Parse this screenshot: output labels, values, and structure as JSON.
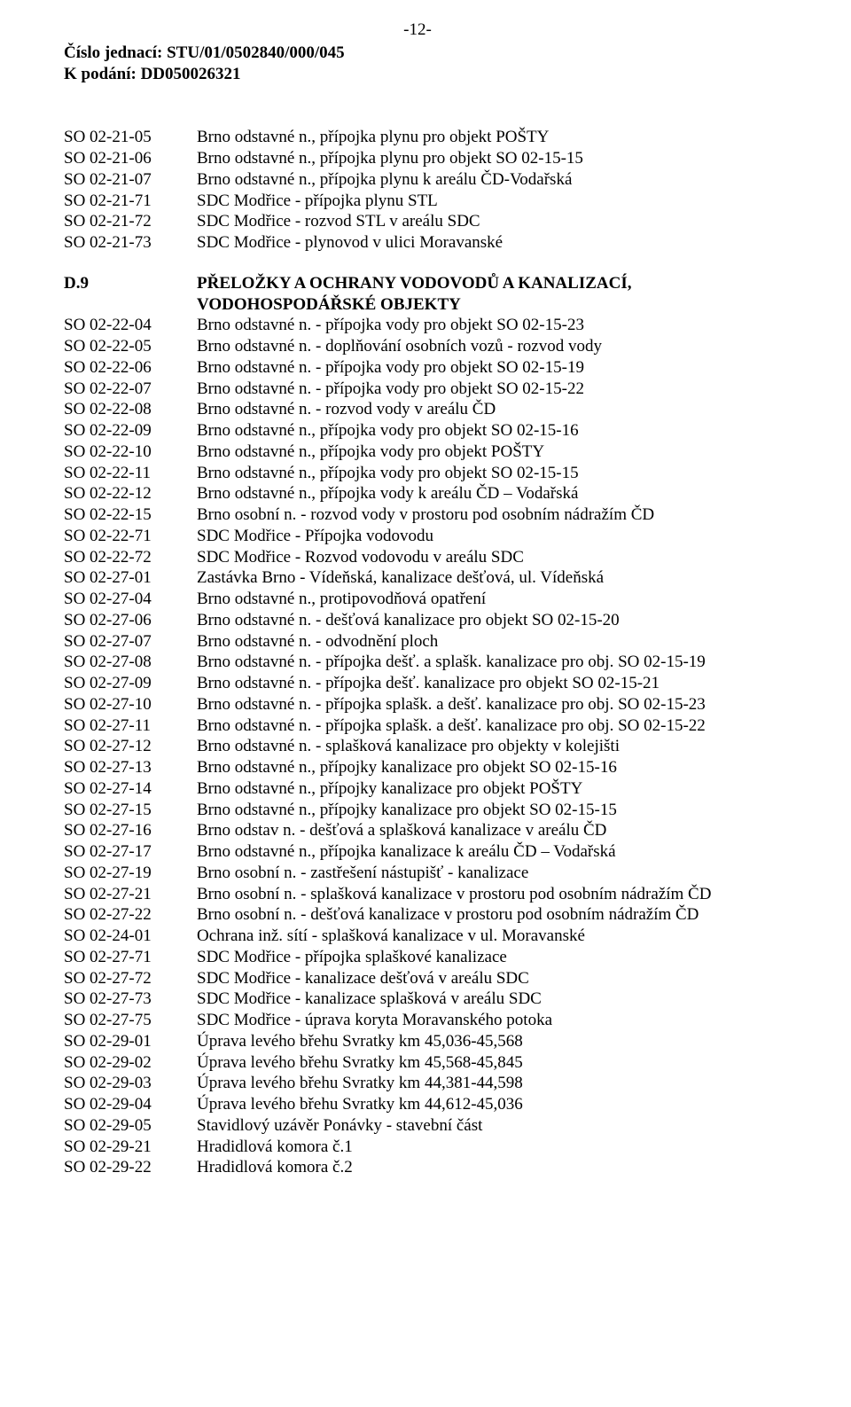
{
  "pageNumber": "-12-",
  "header": {
    "line1": "Číslo jednací: STU/01/0502840/000/045",
    "line2": "K podání: DD050026321"
  },
  "block1": [
    {
      "code": "SO 02-21-05",
      "desc": "Brno odstavné n., přípojka plynu pro objekt POŠTY"
    },
    {
      "code": "SO 02-21-06",
      "desc": "Brno odstavné n., přípojka plynu pro objekt SO 02-15-15"
    },
    {
      "code": "SO 02-21-07",
      "desc": "Brno odstavné n., přípojka plynu k areálu ČD-Vodařská"
    },
    {
      "code": "SO 02-21-71",
      "desc": "SDC Modřice - přípojka plynu STL"
    },
    {
      "code": "SO 02-21-72",
      "desc": "SDC Modřice - rozvod STL v areálu SDC"
    },
    {
      "code": "SO 02-21-73",
      "desc": "SDC Modřice - plynovod v ulici Moravanské"
    }
  ],
  "section": {
    "code": "D.9",
    "title1": "PŘELOŽKY A OCHRANY VODOVODŮ A KANALIZACÍ,",
    "title2": "VODOHOSPODÁŘSKÉ OBJEKTY"
  },
  "block2": [
    {
      "code": "SO 02-22-04",
      "desc": "Brno odstavné n. - přípojka vody pro objekt SO 02-15-23"
    },
    {
      "code": "SO 02-22-05",
      "desc": "Brno odstavné n. - doplňování osobních vozů - rozvod vody"
    },
    {
      "code": "SO 02-22-06",
      "desc": "Brno odstavné n. - přípojka vody pro objekt SO 02-15-19"
    },
    {
      "code": "SO 02-22-07",
      "desc": "Brno odstavné n. - přípojka vody pro objekt SO 02-15-22"
    },
    {
      "code": "SO 02-22-08",
      "desc": "Brno odstavné n. - rozvod vody v areálu ČD"
    },
    {
      "code": "SO 02-22-09",
      "desc": "Brno odstavné n., přípojka vody pro objekt SO 02-15-16"
    },
    {
      "code": "SO 02-22-10",
      "desc": "Brno odstavné n., přípojka vody pro objekt POŠTY"
    },
    {
      "code": "SO 02-22-11",
      "desc": "Brno odstavné n., přípojka vody pro objekt SO 02-15-15"
    },
    {
      "code": "SO 02-22-12",
      "desc": "Brno odstavné n., přípojka vody k areálu ČD – Vodařská"
    },
    {
      "code": "SO 02-22-15",
      "desc": "Brno osobní n. - rozvod vody v prostoru pod osobním nádražím ČD"
    },
    {
      "code": "SO 02-22-71",
      "desc": "SDC Modřice - Přípojka vodovodu"
    },
    {
      "code": "SO 02-22-72",
      "desc": "SDC Modřice - Rozvod vodovodu v areálu SDC"
    },
    {
      "code": "SO 02-27-01",
      "desc": "Zastávka Brno - Vídeňská, kanalizace dešťová, ul. Vídeňská"
    },
    {
      "code": "SO 02-27-04",
      "desc": "Brno odstavné n., protipovodňová opatření"
    },
    {
      "code": "SO 02-27-06",
      "desc": "Brno odstavné n. - dešťová kanalizace pro objekt SO 02-15-20"
    },
    {
      "code": "SO 02-27-07",
      "desc": "Brno odstavné n. - odvodnění ploch"
    },
    {
      "code": "SO 02-27-08",
      "desc": "Brno odstavné n. - přípojka dešť. a splašk. kanalizace pro obj. SO 02-15-19"
    },
    {
      "code": "SO 02-27-09",
      "desc": "Brno odstavné n. - přípojka dešť. kanalizace pro objekt SO 02-15-21"
    },
    {
      "code": "SO 02-27-10",
      "desc": "Brno odstavné n. - přípojka splašk. a dešť. kanalizace pro obj. SO 02-15-23"
    },
    {
      "code": "SO 02-27-11",
      "desc": "Brno odstavné n. - přípojka splašk. a dešť. kanalizace pro obj. SO 02-15-22"
    },
    {
      "code": "SO 02-27-12",
      "desc": "Brno odstavné n. - splašková kanalizace pro objekty v kolejišti"
    },
    {
      "code": "SO 02-27-13",
      "desc": "Brno odstavné n., přípojky kanalizace pro objekt SO 02-15-16"
    },
    {
      "code": "SO 02-27-14",
      "desc": "Brno odstavné n., přípojky kanalizace pro objekt POŠTY"
    },
    {
      "code": "SO 02-27-15",
      "desc": "Brno odstavné n., přípojky kanalizace pro objekt SO 02-15-15"
    },
    {
      "code": "SO 02-27-16",
      "desc": "Brno odstav n. - dešťová a splašková kanalizace v areálu ČD"
    },
    {
      "code": "SO 02-27-17",
      "desc": "Brno odstavné n., přípojka kanalizace k areálu ČD – Vodařská"
    },
    {
      "code": "SO 02-27-19",
      "desc": "Brno osobní n. - zastřešení nástupišť - kanalizace"
    },
    {
      "code": "SO 02-27-21",
      "desc": "Brno osobní n. - splašková kanalizace v prostoru pod osobním nádražím ČD"
    },
    {
      "code": "SO 02-27-22",
      "desc": "Brno osobní n. - dešťová kanalizace v prostoru pod osobním nádražím ČD"
    },
    {
      "code": "SO 02-24-01",
      "desc": "Ochrana inž. sítí - splašková kanalizace v ul. Moravanské"
    },
    {
      "code": "SO 02-27-71",
      "desc": "SDC Modřice  - přípojka splaškové kanalizace"
    },
    {
      "code": "SO 02-27-72",
      "desc": "SDC Modřice  - kanalizace dešťová v areálu SDC"
    },
    {
      "code": "SO 02-27-73",
      "desc": "SDC Modřice  - kanalizace splašková v areálu SDC"
    },
    {
      "code": "SO 02-27-75",
      "desc": "SDC Modřice  - úprava koryta Moravanského potoka"
    },
    {
      "code": "SO 02-29-01",
      "desc": "Úprava levého břehu Svratky km 45,036-45,568"
    },
    {
      "code": "SO 02-29-02",
      "desc": "Úprava levého břehu Svratky km 45,568-45,845"
    },
    {
      "code": "SO 02-29-03",
      "desc": "Úprava levého břehu Svratky km 44,381-44,598"
    },
    {
      "code": "SO 02-29-04",
      "desc": "Úprava levého břehu Svratky km 44,612-45,036"
    },
    {
      "code": "SO 02-29-05",
      "desc": "Stavidlový uzávěr Ponávky - stavební část"
    },
    {
      "code": "SO 02-29-21",
      "desc": "Hradidlová komora č.1"
    },
    {
      "code": "SO 02-29-22",
      "desc": "Hradidlová komora č.2"
    }
  ]
}
